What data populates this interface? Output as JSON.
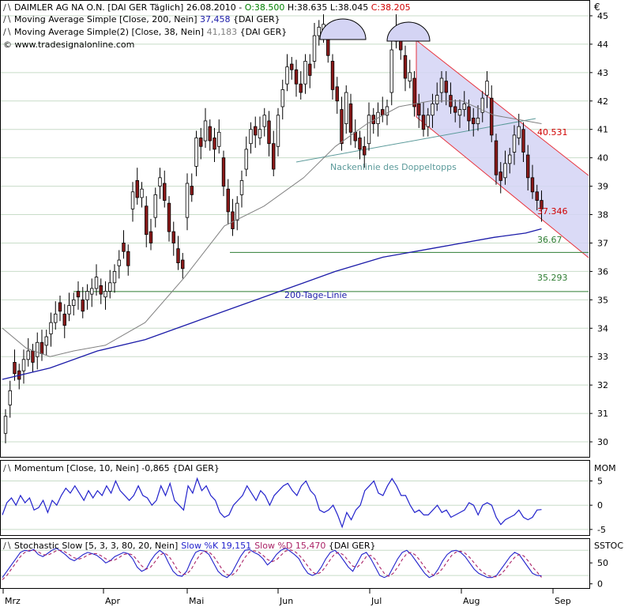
{
  "header": {
    "line1": {
      "name": "DAIMLER AG NA O.N. [DAI GER  Täglich] 26.08.2010 - ",
      "o": "O:38.500",
      "h": " H:38.635",
      "l": " L:38.045",
      "c": " C:38.205"
    },
    "line2": {
      "name": "Moving Average Simple [Close, 200, Nein]",
      "value": " 37,458",
      "suffix": " {DAI GER}"
    },
    "line3": {
      "name": "Moving Average Simple(2) [Close, 38, Nein]",
      "value": " 41,183",
      "suffix": " {DAI GER}"
    },
    "line4": "© www.tradesignalonline.com"
  },
  "currency_symbol": "€",
  "colors": {
    "up_candle": "#ffffff",
    "down_candle": "#8b1a1a",
    "ma200": "#1a1aa8",
    "ma38": "#808080",
    "channel_fill": "#d4d4f4",
    "channel_line": "#e8323c",
    "support_line": "#2e7d32",
    "neckline": "#5b9a9a",
    "momentum": "#2222cc",
    "stoch_k": "#2222cc",
    "stoch_d": "#aa2266",
    "grid": "#c8dcc8"
  },
  "chart_data": [
    {
      "type": "candlestick",
      "ylim": [
        29.5,
        45.5
      ],
      "yticks": [
        30,
        31,
        32,
        33,
        34,
        35,
        36,
        37,
        38,
        39,
        40,
        41,
        42,
        43,
        44,
        45
      ],
      "xticks": [
        "Mrz",
        "Apr",
        "Mai",
        "Jun",
        "Jul",
        "Aug",
        "Sep"
      ],
      "close": [
        30.9,
        31.8,
        32.4,
        32.2,
        32.9,
        33.2,
        32.8,
        33.5,
        33.1,
        33.7,
        34.2,
        34.5,
        34.6,
        34.1,
        34.8,
        35.0,
        35.1,
        34.6,
        35.3,
        35.4,
        35.8,
        35.2,
        35.3,
        35.6,
        36.0,
        36.4,
        36.7,
        36.2,
        38.8,
        38.6,
        38.9,
        37.3,
        37.0,
        38.7,
        39.3,
        38.5,
        37.4,
        37.0,
        36.3,
        36.1,
        39.1,
        38.7,
        40.7,
        40.4,
        41.3,
        40.6,
        40.3,
        40.9,
        39.0,
        38.1,
        37.5,
        38.4,
        39.2,
        40.3,
        41.0,
        40.8,
        41.0,
        41.5,
        40.5,
        39.6,
        41.5,
        42.4,
        43.2,
        43.1,
        42.6,
        42.3,
        43.4,
        42.9,
        44.3,
        44.6,
        44.7,
        43.6,
        42.4,
        42.0,
        40.5,
        42.3,
        40.9,
        40.6,
        40.3,
        40.1,
        41.5,
        41.2,
        41.6,
        41.5,
        41.8,
        43.8,
        44.6,
        43.8,
        42.8,
        43.0,
        41.8,
        41.5,
        41.0,
        41.5,
        41.9,
        42.2,
        42.8,
        42.3,
        41.8,
        41.6,
        41.7,
        41.9,
        41.3,
        41.2,
        41.4,
        42.1,
        42.7,
        40.8,
        39.4,
        39.2,
        39.8,
        40.1,
        40.8,
        41.1,
        40.2,
        39.3,
        38.8,
        38.5,
        38.2
      ],
      "open_delta": [
        -0.6,
        -0.5,
        0.4,
        0.3,
        -0.4,
        -0.3,
        0.4,
        -0.5,
        0.4,
        -0.3,
        -0.4,
        -0.3,
        0.3,
        0.4,
        -0.3,
        -0.2,
        0.2,
        0.4,
        -0.3,
        -0.2,
        -0.4,
        0.3,
        -0.2,
        -0.3,
        -0.4,
        -0.2,
        0.3,
        0.5,
        -0.6,
        0.6,
        -0.3,
        1.0,
        0.4,
        -0.8,
        -0.3,
        0.6,
        1.0,
        0.4,
        0.5,
        0.3,
        -1.2,
        0.3,
        -1.0,
        0.3,
        -0.7,
        0.5,
        0.4,
        -0.5,
        1.0,
        0.8,
        0.6,
        -0.6,
        -0.5,
        -0.7,
        -0.5,
        0.3,
        -0.3,
        -0.4,
        0.8,
        0.9,
        -1.1,
        -0.6,
        -0.6,
        0.2,
        0.5,
        0.3,
        -0.8,
        0.4,
        -0.9,
        -0.3,
        -0.2,
        0.6,
        1.0,
        0.5,
        1.2,
        -1.1,
        1.0,
        0.3,
        0.4,
        0.3,
        -1.0,
        0.3,
        -0.4,
        0.2,
        -0.3,
        -1.5,
        -0.5,
        0.6,
        0.8,
        -0.3,
        1.0,
        0.4,
        0.5,
        -0.4,
        -0.4,
        -0.3,
        -0.5,
        0.4,
        0.4,
        0.2,
        -0.2,
        -0.2,
        0.5,
        0.2,
        -0.2,
        -0.5,
        -0.5,
        1.3,
        1.2,
        0.3,
        -0.5,
        -0.3,
        -0.6,
        -0.4,
        0.8,
        0.8,
        0.5,
        0.3,
        0.3
      ],
      "ma200": {
        "x": [
          0,
          60,
          120,
          180,
          240,
          300,
          360,
          420,
          480,
          540,
          580,
          620,
          660,
          680
        ],
        "y": [
          32.2,
          32.6,
          33.2,
          33.6,
          34.2,
          34.8,
          35.4,
          36.0,
          36.5,
          36.8,
          37.0,
          37.2,
          37.35,
          37.5
        ]
      },
      "ma38": {
        "x": [
          0,
          30,
          60,
          90,
          130,
          180,
          230,
          280,
          330,
          380,
          420,
          460,
          500,
          540,
          580,
          620,
          660,
          680
        ],
        "y": [
          34.0,
          33.3,
          33.0,
          33.2,
          33.4,
          34.2,
          35.8,
          37.6,
          38.3,
          39.3,
          40.4,
          41.2,
          41.8,
          42.0,
          42.0,
          41.5,
          41.3,
          41.2
        ]
      },
      "annotations": [
        {
          "label": "40.531"
        },
        {
          "label": "37.346"
        },
        {
          "label": "36.67"
        },
        {
          "label": "35.293"
        },
        {
          "label": "Nackenlinie des Doppeltopps"
        },
        {
          "label": "200-Tage-Linie"
        }
      ]
    },
    {
      "type": "line",
      "title": "Momentum [Close, 10, Nein] -0,865 {DAI GER}",
      "name": "MOM",
      "ylim": [
        -6,
        9
      ],
      "yticks": [
        -5,
        0,
        5
      ],
      "values": [
        -2,
        0.5,
        1.5,
        0,
        2,
        0.5,
        1.5,
        -1,
        -0.5,
        1,
        -1.5,
        1,
        0,
        2,
        3.5,
        2.5,
        4,
        2.5,
        1,
        3,
        1.5,
        3,
        2,
        4,
        2.5,
        5,
        3,
        2,
        1,
        2,
        4,
        2,
        1.5,
        0,
        1,
        4,
        2,
        4.5,
        1,
        0,
        -1,
        4,
        2.5,
        5.5,
        3,
        4,
        2,
        1,
        -1.5,
        -2.5,
        -2,
        0,
        1,
        2,
        4,
        2.5,
        1,
        3,
        2,
        0,
        2,
        3,
        4,
        4.5,
        3,
        2,
        4,
        5,
        3,
        2,
        -1,
        -1.5,
        -1,
        0,
        -2,
        -4.5,
        -1.5,
        -3,
        -1,
        0,
        3,
        4,
        5,
        2.5,
        2,
        4,
        5.5,
        4,
        2,
        2,
        0,
        -1.5,
        -1,
        -2,
        -2,
        -1,
        0,
        -1.5,
        -1,
        -2.5,
        -2,
        -1.5,
        -1,
        0.5,
        0,
        -2,
        0,
        0.5,
        0,
        -2.5,
        -4,
        -3,
        -2.5,
        -2,
        -1,
        -2.5,
        -3,
        -2.5,
        -1,
        -0.9
      ]
    },
    {
      "type": "line",
      "title": "Stochastic Slow [5, 3, 3, 80, 20, Nein]",
      "legend": [
        {
          "name": "Slow %K 19,151"
        },
        {
          "name": "Slow %D 15,470"
        }
      ],
      "name": "SSTOC",
      "ylim": [
        -10,
        105
      ],
      "yticks": [
        0,
        50
      ],
      "series": [
        {
          "name": "Slow %K 19,151",
          "values": [
            15,
            30,
            45,
            60,
            75,
            80,
            78,
            82,
            70,
            65,
            72,
            80,
            85,
            78,
            70,
            60,
            55,
            62,
            70,
            75,
            72,
            68,
            60,
            50,
            55,
            65,
            70,
            75,
            72,
            60,
            40,
            30,
            35,
            55,
            70,
            80,
            72,
            50,
            30,
            20,
            18,
            30,
            55,
            75,
            80,
            78,
            70,
            50,
            30,
            20,
            15,
            25,
            45,
            65,
            80,
            82,
            75,
            70,
            60,
            45,
            55,
            70,
            80,
            85,
            78,
            70,
            60,
            40,
            25,
            20,
            25,
            40,
            60,
            75,
            80,
            70,
            55,
            40,
            30,
            50,
            70,
            75,
            60,
            40,
            20,
            15,
            20,
            40,
            60,
            75,
            80,
            70,
            55,
            40,
            25,
            15,
            20,
            35,
            55,
            70,
            78,
            80,
            75,
            65,
            50,
            35,
            25,
            20,
            15,
            15,
            20,
            35,
            50,
            65,
            75,
            70,
            55,
            40,
            25,
            20,
            19
          ]
        },
        {
          "name": "Slow %D 15,470",
          "values": [
            10,
            20,
            35,
            50,
            65,
            75,
            80,
            80,
            76,
            70,
            68,
            73,
            79,
            80,
            76,
            69,
            62,
            59,
            62,
            69,
            72,
            72,
            67,
            60,
            55,
            57,
            63,
            70,
            72,
            69,
            57,
            43,
            35,
            40,
            53,
            68,
            74,
            67,
            51,
            33,
            23,
            23,
            34,
            53,
            70,
            78,
            76,
            66,
            50,
            33,
            22,
            20,
            28,
            45,
            63,
            76,
            79,
            76,
            68,
            58,
            53,
            57,
            68,
            78,
            81,
            78,
            69,
            57,
            42,
            28,
            23,
            28,
            42,
            58,
            72,
            75,
            68,
            55,
            42,
            40,
            50,
            65,
            68,
            58,
            40,
            25,
            18,
            25,
            40,
            58,
            72,
            75,
            68,
            55,
            40,
            27,
            20,
            25,
            37,
            53,
            68,
            76,
            78,
            73,
            63,
            50,
            37,
            27,
            20,
            17,
            17,
            23,
            35,
            50,
            63,
            70,
            67,
            55,
            40,
            28,
            15.5
          ]
        }
      ],
      "dash_d": true
    }
  ]
}
